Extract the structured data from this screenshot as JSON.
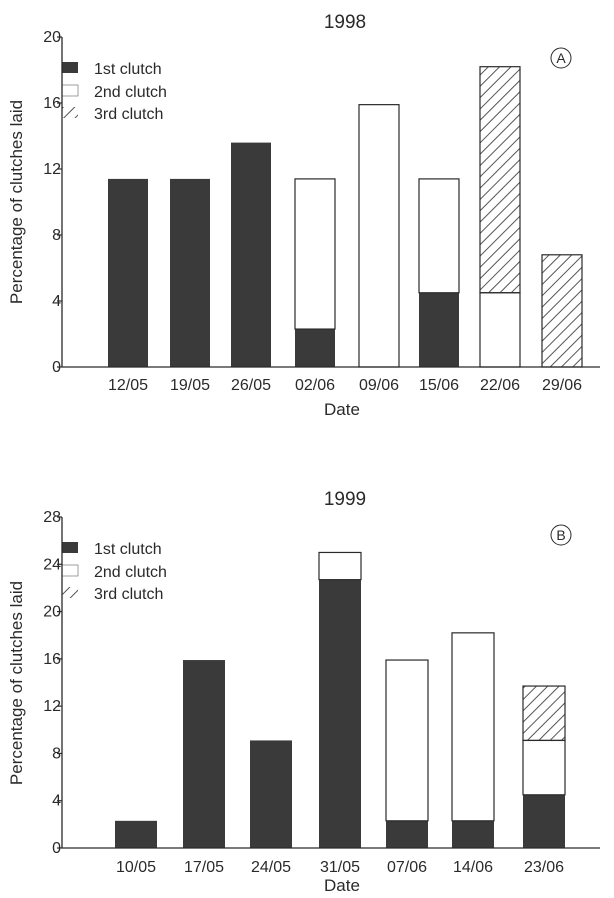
{
  "chart_data": [
    {
      "type": "bar",
      "stacked": true,
      "panel": "A",
      "title": "1998",
      "xlabel": "Date",
      "ylabel": "Percentage of clutches laid",
      "ylim": [
        0,
        20
      ],
      "yticks": [
        "0",
        "4",
        "8",
        "12",
        "16",
        "20"
      ],
      "categories": [
        "12/05",
        "19/05",
        "26/05",
        "02/06",
        "09/06",
        "15/06",
        "22/06",
        "29/06"
      ],
      "series": [
        {
          "name": "1st clutch",
          "style": "solid",
          "values": [
            11.4,
            11.4,
            13.6,
            2.3,
            0,
            4.5,
            0,
            0
          ]
        },
        {
          "name": "2nd clutch",
          "style": "open",
          "values": [
            0,
            0,
            0,
            9.1,
            15.9,
            6.9,
            4.5,
            0
          ]
        },
        {
          "name": "3rd clutch",
          "style": "hatched",
          "values": [
            0,
            0,
            0,
            0,
            0,
            0,
            13.7,
            6.8
          ]
        }
      ],
      "legend_position": "top-left",
      "grid": false
    },
    {
      "type": "bar",
      "stacked": true,
      "panel": "B",
      "title": "1999",
      "xlabel": "Date",
      "ylabel": "Percentage of clutches laid",
      "ylim": [
        0,
        28
      ],
      "yticks": [
        "0",
        "4",
        "8",
        "12",
        "16",
        "20",
        "24",
        "28"
      ],
      "categories": [
        "10/05",
        "17/05",
        "24/05",
        "31/05",
        "07/06",
        "14/06",
        "23/06"
      ],
      "series": [
        {
          "name": "1st clutch",
          "style": "solid",
          "values": [
            2.3,
            15.9,
            9.1,
            22.7,
            2.3,
            2.3,
            4.5
          ]
        },
        {
          "name": "2nd clutch",
          "style": "open",
          "values": [
            0,
            0,
            0,
            2.3,
            13.6,
            15.9,
            4.6
          ]
        },
        {
          "name": "3rd clutch",
          "style": "hatched",
          "values": [
            0,
            0,
            0,
            0,
            0,
            0,
            4.6
          ]
        }
      ],
      "legend_position": "top-left",
      "grid": false
    }
  ],
  "colors": {
    "solid": "#3a3a3a",
    "open": "#ffffff",
    "axis": "#2a2a2a",
    "hatch": "#555555"
  }
}
